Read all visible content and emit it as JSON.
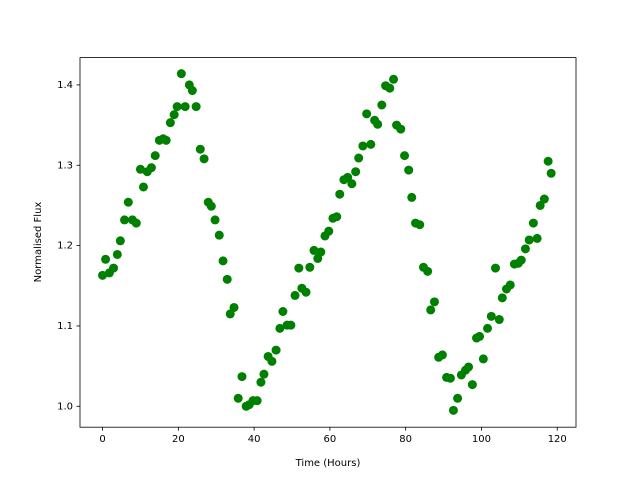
{
  "chart_data": {
    "type": "scatter",
    "xlabel": "Time (Hours)",
    "ylabel": "Normalised Flux",
    "series": [
      {
        "color": "#008000",
        "x": [
          0,
          0.8,
          1.8,
          2.9,
          3.9,
          4.7,
          5.8,
          6.8,
          7.9,
          8.9,
          10,
          10.8,
          11.8,
          12.9,
          13.9,
          15,
          16,
          16.8,
          17.9,
          18.9,
          19.7,
          20.8,
          21.8,
          22.9,
          23.7,
          24.7,
          25.8,
          26.8,
          27.9,
          28.7,
          29.7,
          30.8,
          31.8,
          32.9,
          33.7,
          34.7,
          35.8,
          36.8,
          37.9,
          38.7,
          39.7,
          40.8,
          41.8,
          42.6,
          43.7,
          44.7,
          45.8,
          46.8,
          47.6,
          48.7,
          49.7,
          50.8,
          51.8,
          52.6,
          53.7,
          54.7,
          55.8,
          56.8,
          57.6,
          58.7,
          59.7,
          60.8,
          61.8,
          62.6,
          63.7,
          64.7,
          65.8,
          66.8,
          67.6,
          68.7,
          69.7,
          70.8,
          71.8,
          72.6,
          73.7,
          74.7,
          75.8,
          76.8,
          77.6,
          78.7,
          79.7,
          80.8,
          81.6,
          82.6,
          83.7,
          84.7,
          85.8,
          86.6,
          87.6,
          88.7,
          89.7,
          90.8,
          91.8,
          92.6,
          93.7,
          94.7,
          95.8,
          96.6,
          97.6,
          98.7,
          99.5,
          100.5,
          101.6,
          102.6,
          103.7,
          104.7,
          105.5,
          106.6,
          107.6,
          108.7,
          109.7,
          110.5,
          111.6,
          112.6,
          113.7,
          114.7,
          115.5,
          116.6,
          117.6,
          118.4
        ],
        "values": [
          1.163,
          1.183,
          1.166,
          1.172,
          1.189,
          1.206,
          1.232,
          1.254,
          1.232,
          1.228,
          1.295,
          1.273,
          1.292,
          1.297,
          1.312,
          1.331,
          1.333,
          1.331,
          1.353,
          1.363,
          1.373,
          1.414,
          1.373,
          1.4,
          1.393,
          1.373,
          1.32,
          1.308,
          1.254,
          1.249,
          1.232,
          1.213,
          1.181,
          1.158,
          1.115,
          1.123,
          1.01,
          1.037,
          1.0,
          1.002,
          1.007,
          1.007,
          1.03,
          1.04,
          1.062,
          1.056,
          1.07,
          1.097,
          1.118,
          1.101,
          1.101,
          1.138,
          1.172,
          1.147,
          1.142,
          1.173,
          1.194,
          1.184,
          1.192,
          1.212,
          1.218,
          1.234,
          1.236,
          1.264,
          1.282,
          1.285,
          1.277,
          1.292,
          1.309,
          1.324,
          1.364,
          1.326,
          1.356,
          1.351,
          1.375,
          1.399,
          1.396,
          1.407,
          1.35,
          1.345,
          1.312,
          1.294,
          1.26,
          1.228,
          1.226,
          1.173,
          1.168,
          1.12,
          1.13,
          1.061,
          1.064,
          1.036,
          1.035,
          0.995,
          1.01,
          1.039,
          1.045,
          1.049,
          1.027,
          1.085,
          1.087,
          1.059,
          1.097,
          1.112,
          1.172,
          1.108,
          1.135,
          1.146,
          1.151,
          1.177,
          1.178,
          1.182,
          1.196,
          1.207,
          1.228,
          1.209,
          1.25,
          1.258,
          1.305,
          1.29
        ]
      }
    ],
    "xlim": [
      -5.95,
      124.95
    ],
    "xticks": [
      0,
      20,
      40,
      60,
      80,
      100,
      120
    ],
    "ylim": [
      0.974,
      1.434
    ],
    "yticks": [
      {
        "value": 1,
        "label": "1.0"
      },
      1.1,
      1.2,
      1.3,
      1.4
    ]
  }
}
